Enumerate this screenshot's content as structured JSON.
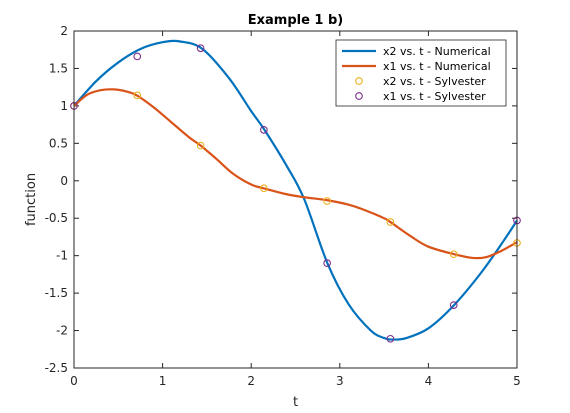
{
  "chart_data": {
    "type": "line",
    "title": "Example 1 b)",
    "xlabel": "t",
    "ylabel": "function",
    "xlim": [
      0,
      5
    ],
    "ylim": [
      -2.5,
      2
    ],
    "xticks": [
      0,
      1,
      2,
      3,
      4,
      5
    ],
    "yticks": [
      -2.5,
      -2,
      -1.5,
      -1,
      -0.5,
      0,
      0.5,
      1,
      1.5,
      2
    ],
    "xtick_labels": [
      "0",
      "1",
      "2",
      "3",
      "4",
      "5"
    ],
    "ytick_labels": [
      "-2.5",
      "-2",
      "-1.5",
      "-1",
      "-0.5",
      "0",
      "0.5",
      "1",
      "1.5",
      "2"
    ],
    "grid": false,
    "legend_position": "top-right",
    "series": [
      {
        "name": "x2 vs. t - Numerical",
        "style": "line",
        "color": "#0072bd",
        "x": [
          0,
          0.25,
          0.5,
          0.75,
          1.0,
          1.2,
          1.45,
          1.75,
          2.0,
          2.15,
          2.4,
          2.6,
          2.86,
          3.1,
          3.35,
          3.5,
          3.6,
          3.75,
          4.0,
          4.29,
          4.6,
          4.85,
          5.0
        ],
        "y": [
          1.0,
          1.33,
          1.58,
          1.76,
          1.85,
          1.86,
          1.76,
          1.37,
          0.93,
          0.68,
          0.2,
          -0.25,
          -1.1,
          -1.65,
          -2.0,
          -2.1,
          -2.12,
          -2.1,
          -1.97,
          -1.66,
          -1.22,
          -0.8,
          -0.53
        ]
      },
      {
        "name": "x1 vs. t - Numerical",
        "style": "line",
        "color": "#d95319",
        "x": [
          0,
          0.15,
          0.3,
          0.45,
          0.6,
          0.71,
          0.9,
          1.1,
          1.3,
          1.43,
          1.6,
          1.8,
          2.0,
          2.14,
          2.4,
          2.6,
          2.86,
          3.1,
          3.3,
          3.5,
          3.57,
          3.8,
          4.0,
          4.29,
          4.5,
          4.65,
          4.8,
          5.0
        ],
        "y": [
          1.0,
          1.15,
          1.21,
          1.22,
          1.19,
          1.14,
          0.98,
          0.78,
          0.58,
          0.47,
          0.3,
          0.09,
          -0.05,
          -0.1,
          -0.18,
          -0.22,
          -0.26,
          -0.32,
          -0.4,
          -0.5,
          -0.55,
          -0.74,
          -0.88,
          -0.98,
          -1.03,
          -1.02,
          -0.95,
          -0.82
        ]
      },
      {
        "name": "x2 vs. t - Sylvester",
        "style": "markers",
        "marker": "circle",
        "color": "#edb120",
        "x": [
          0,
          0.714,
          1.429,
          2.143,
          2.857,
          3.571,
          4.286,
          5.0
        ],
        "y": [
          1.0,
          1.14,
          0.47,
          -0.1,
          -0.27,
          -0.55,
          -0.98,
          -0.83
        ]
      },
      {
        "name": "x1 vs. t - Sylvester",
        "style": "markers",
        "marker": "circle",
        "color": "#7e2f8e",
        "x": [
          0,
          0.714,
          1.429,
          2.143,
          2.857,
          3.571,
          4.286,
          5.0
        ],
        "y": [
          1.0,
          1.66,
          1.77,
          0.68,
          -1.1,
          -2.11,
          -1.66,
          -0.53
        ]
      }
    ]
  }
}
